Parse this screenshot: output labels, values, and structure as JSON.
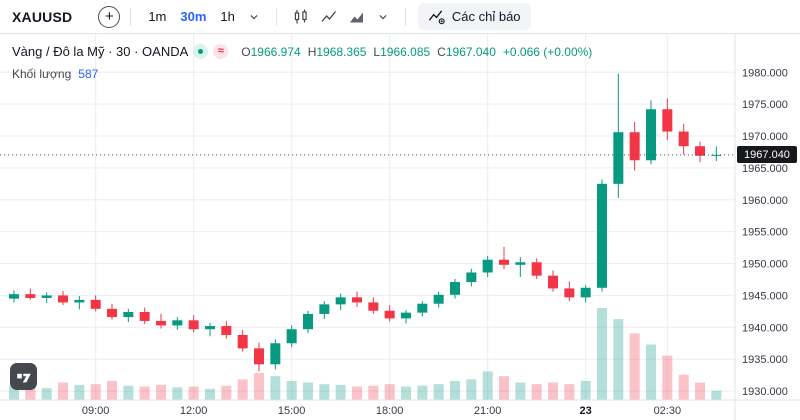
{
  "toolbar": {
    "symbol": "XAUUSD",
    "compare_plus": "+",
    "intervals": [
      {
        "label": "1m",
        "active": false
      },
      {
        "label": "30m",
        "active": true
      },
      {
        "label": "1h",
        "active": false
      }
    ],
    "indicators_label": "Các chỉ báo"
  },
  "legend": {
    "title": "Vàng / Đô la Mỹ · 30 · OANDA",
    "approx_symbol": "≈",
    "ohlc": {
      "o_label": "O",
      "o_value": "1966.974",
      "h_label": "H",
      "h_value": "1968.365",
      "l_label": "L",
      "l_value": "1966.085",
      "c_label": "C",
      "c_value": "1967.040",
      "change": "+0.066 (+0.00%)"
    },
    "volume_label": "Khối lượng",
    "volume_value": "587"
  },
  "colors": {
    "up": "#089981",
    "down": "#f23645",
    "up_volume": "rgba(8,153,129,0.30)",
    "down_volume": "rgba(242,54,69,0.30)",
    "accent": "#2962ff",
    "grid": "#ebeef3",
    "axis_text": "#363a45",
    "border": "#e0e3eb",
    "label_bg": "#17181c"
  },
  "chart_data": {
    "type": "candlestick",
    "symbol": "XAUUSD",
    "title": "Vàng / Đô la Mỹ · 30 · OANDA",
    "interval": "30m",
    "provider": "OANDA",
    "price_range": [
      1928.6,
      1986.0
    ],
    "price_ticks": [
      1980,
      1975,
      1970,
      1965,
      1960,
      1955,
      1950,
      1945,
      1940,
      1935,
      1930
    ],
    "last_price": 1967.04,
    "last_price_label": "1967.040",
    "time_marks": [
      {
        "index": 5,
        "label": "09:00",
        "bold": false
      },
      {
        "index": 11,
        "label": "12:00",
        "bold": false
      },
      {
        "index": 17,
        "label": "15:00",
        "bold": false
      },
      {
        "index": 23,
        "label": "18:00",
        "bold": false
      },
      {
        "index": 29,
        "label": "21:00",
        "bold": false
      },
      {
        "index": 35,
        "label": "23",
        "bold": true
      },
      {
        "index": 40,
        "label": "02:30",
        "bold": false
      }
    ],
    "open": [
      1944.5,
      1945.2,
      1944.6,
      1945.0,
      1943.9,
      1944.3,
      1942.9,
      1941.6,
      1942.4,
      1941.0,
      1940.3,
      1941.1,
      1939.7,
      1940.2,
      1938.8,
      1936.7,
      1934.2,
      1937.5,
      1939.7,
      1942.1,
      1943.6,
      1944.7,
      1943.9,
      1942.6,
      1941.4,
      1942.3,
      1943.7,
      1945.1,
      1947.1,
      1948.6,
      1950.6,
      1949.8,
      1950.2,
      1948.1,
      1946.1,
      1944.7,
      1946.2,
      1962.5,
      1970.6,
      1966.2,
      1974.2,
      1970.7,
      1968.4,
      1966.974
    ],
    "high": [
      1945.8,
      1946.1,
      1945.5,
      1945.7,
      1944.9,
      1945.0,
      1943.7,
      1942.9,
      1943.1,
      1942.1,
      1941.6,
      1941.9,
      1940.7,
      1941.0,
      1939.6,
      1937.6,
      1938.1,
      1940.3,
      1942.6,
      1944.1,
      1945.3,
      1945.6,
      1944.7,
      1943.5,
      1942.7,
      1944.1,
      1945.6,
      1947.6,
      1949.2,
      1951.2,
      1952.6,
      1951.0,
      1950.8,
      1948.9,
      1947.2,
      1946.6,
      1963.2,
      1979.8,
      1972.2,
      1975.6,
      1975.9,
      1971.9,
      1969.1,
      1968.365
    ],
    "low": [
      1943.9,
      1944.3,
      1943.8,
      1943.5,
      1942.8,
      1942.5,
      1941.2,
      1940.8,
      1940.5,
      1939.8,
      1939.6,
      1939.2,
      1938.6,
      1938.2,
      1936.2,
      1933.1,
      1933.4,
      1936.9,
      1939.1,
      1941.3,
      1942.7,
      1943.2,
      1942.1,
      1940.9,
      1940.6,
      1941.7,
      1943.1,
      1944.5,
      1946.4,
      1947.9,
      1949.1,
      1947.9,
      1947.6,
      1945.6,
      1944.1,
      1943.9,
      1945.6,
      1960.3,
      1964.6,
      1965.6,
      1969.4,
      1967.1,
      1965.9,
      1966.085
    ],
    "close": [
      1945.2,
      1944.6,
      1945.0,
      1943.9,
      1944.3,
      1942.9,
      1941.6,
      1942.4,
      1941.0,
      1940.3,
      1941.1,
      1939.7,
      1940.2,
      1938.8,
      1936.7,
      1934.2,
      1937.5,
      1939.7,
      1942.1,
      1943.6,
      1944.7,
      1943.9,
      1942.6,
      1941.4,
      1942.3,
      1943.7,
      1945.1,
      1947.1,
      1948.6,
      1950.6,
      1949.8,
      1950.2,
      1948.1,
      1946.1,
      1944.7,
      1946.2,
      1962.5,
      1970.6,
      1966.2,
      1974.2,
      1970.7,
      1968.4,
      1966.9,
      1967.04
    ],
    "volume": [
      900,
      800,
      750,
      1100,
      950,
      1000,
      1200,
      900,
      850,
      950,
      800,
      850,
      700,
      900,
      1300,
      1700,
      1500,
      1200,
      1100,
      1000,
      950,
      850,
      900,
      1000,
      850,
      900,
      1000,
      1200,
      1300,
      1800,
      1500,
      1100,
      1000,
      1100,
      1000,
      1200,
      5800,
      5100,
      4200,
      3500,
      2800,
      1600,
      1100,
      587
    ]
  }
}
